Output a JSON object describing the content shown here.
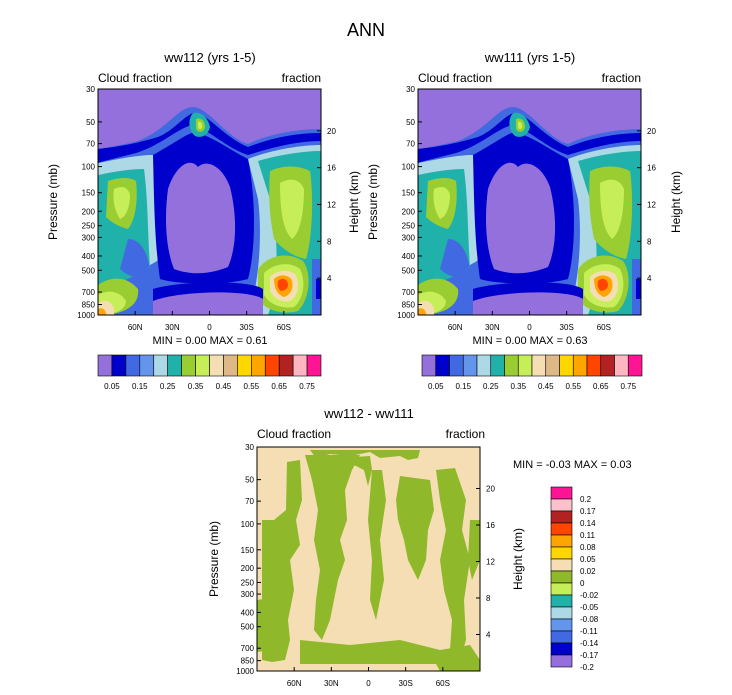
{
  "page_title": "ANN",
  "panel_top_left": {
    "title": "ww112 (yrs 1-5)",
    "left_header": "Cloud fraction",
    "right_header": "fraction",
    "min_max": "MIN =   0.00  MAX =   0.61"
  },
  "panel_top_right": {
    "title": "ww111 (yrs 1-5)",
    "left_header": "Cloud fraction",
    "right_header": "fraction",
    "min_max": "MIN =   0.00  MAX =   0.63"
  },
  "panel_bottom": {
    "title": "ww112 - ww111",
    "left_header": "Cloud fraction",
    "right_header": "fraction",
    "min_max": "MIN =  -0.03  MAX =   0.03"
  },
  "y_axis_label": "Pressure (mb)",
  "y2_axis_label": "Height (km)",
  "pressure_ticks": [
    "30",
    "50",
    "70",
    "100",
    "150",
    "200",
    "250",
    "300",
    "400",
    "500",
    "700",
    "850",
    "1000"
  ],
  "height_ticks": [
    "20",
    "16",
    "12",
    "8",
    "4"
  ],
  "lat_ticks": [
    "60N",
    "30N",
    "0",
    "30S",
    "60S"
  ],
  "colorbar_horizontal": {
    "colors": [
      "#9370db",
      "#0000cd",
      "#4169e1",
      "#6495ed",
      "#add8e6",
      "#20b2aa",
      "#9acd32",
      "#c5ee58",
      "#f5deb3",
      "#deb887",
      "#ffd700",
      "#ffa500",
      "#ff4500",
      "#b22222",
      "#ffb6c1",
      "#ff1493"
    ],
    "labels": [
      "0.05",
      "0.15",
      "0.25",
      "0.35",
      "0.45",
      "0.55",
      "0.65",
      "0.75"
    ]
  },
  "colorbar_vertical": {
    "colors": [
      "#ff1493",
      "#ffc0cb",
      "#b22222",
      "#ff4500",
      "#ffa500",
      "#ffd700",
      "#f5deb3",
      "#8fb82a",
      "#c5ee58",
      "#20b2aa",
      "#add8e6",
      "#6495ed",
      "#4169e1",
      "#0000cd",
      "#9370db"
    ],
    "labels": [
      "0.2",
      "0.17",
      "0.14",
      "0.11",
      "0.08",
      "0.05",
      "0.02",
      "0",
      "-0.02",
      "-0.05",
      "-0.08",
      "-0.11",
      "-0.14",
      "-0.17",
      "-0.2"
    ]
  },
  "chart_data": [
    {
      "type": "heatmap",
      "title": "ww112 (yrs 1-5)",
      "xlabel": "",
      "ylabel": "Pressure (mb)",
      "y2label": "Height (km)",
      "x_ticks": [
        "60N",
        "30N",
        "0",
        "30S",
        "60S"
      ],
      "y_ticks": [
        30,
        50,
        70,
        100,
        150,
        200,
        250,
        300,
        400,
        500,
        700,
        850,
        1000
      ],
      "levels": [
        0.05,
        0.1,
        0.15,
        0.2,
        0.25,
        0.3,
        0.35,
        0.4,
        0.45,
        0.5,
        0.55,
        0.6,
        0.65,
        0.7,
        0.75
      ],
      "min": 0.0,
      "max": 0.61
    },
    {
      "type": "heatmap",
      "title": "ww111 (yrs 1-5)",
      "xlabel": "",
      "ylabel": "Pressure (mb)",
      "y2label": "Height (km)",
      "x_ticks": [
        "60N",
        "30N",
        "0",
        "30S",
        "60S"
      ],
      "y_ticks": [
        30,
        50,
        70,
        100,
        150,
        200,
        250,
        300,
        400,
        500,
        700,
        850,
        1000
      ],
      "levels": [
        0.05,
        0.1,
        0.15,
        0.2,
        0.25,
        0.3,
        0.35,
        0.4,
        0.45,
        0.5,
        0.55,
        0.6,
        0.65,
        0.7,
        0.75
      ],
      "min": 0.0,
      "max": 0.63
    },
    {
      "type": "heatmap",
      "title": "ww112 - ww111",
      "xlabel": "",
      "ylabel": "Pressure (mb)",
      "y2label": "Height (km)",
      "x_ticks": [
        "60N",
        "30N",
        "0",
        "30S",
        "60S"
      ],
      "y_ticks": [
        30,
        50,
        70,
        100,
        150,
        200,
        250,
        300,
        400,
        500,
        700,
        850,
        1000
      ],
      "levels": [
        -0.2,
        -0.17,
        -0.14,
        -0.11,
        -0.08,
        -0.05,
        -0.02,
        0,
        0.02,
        0.05,
        0.08,
        0.11,
        0.14,
        0.17,
        0.2
      ],
      "min": -0.03,
      "max": 0.03
    }
  ]
}
